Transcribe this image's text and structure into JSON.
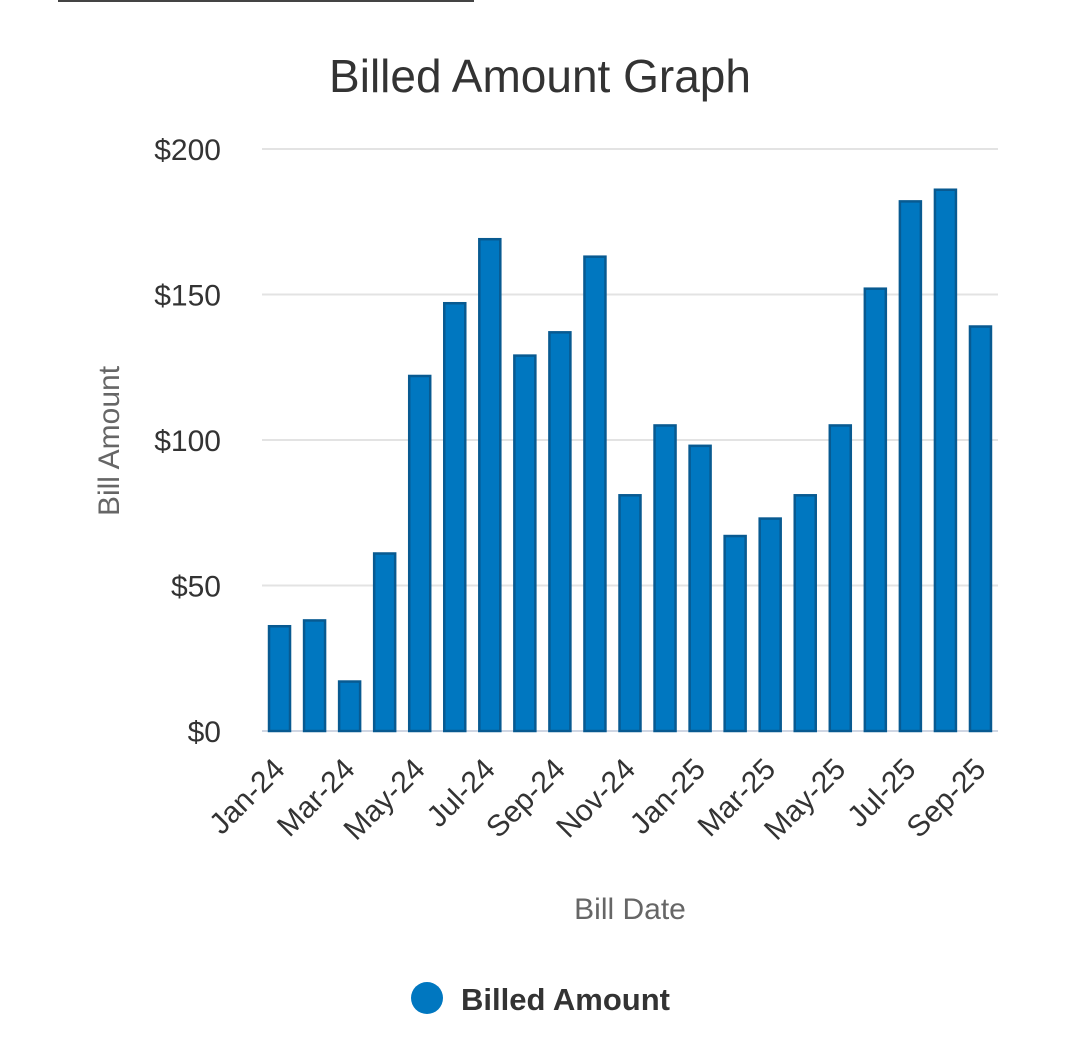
{
  "chart_data": {
    "type": "bar",
    "title": "Billed Amount Graph",
    "xlabel": "Bill Date",
    "ylabel": "Bill Amount",
    "ylim": [
      0,
      200
    ],
    "yticks": [
      0,
      50,
      100,
      150,
      200
    ],
    "ytick_labels": [
      "$0",
      "$50",
      "$100",
      "$150",
      "$200"
    ],
    "categories": [
      "Jan-24",
      "Feb-24",
      "Mar-24",
      "Apr-24",
      "May-24",
      "Jun-24",
      "Jul-24",
      "Aug-24",
      "Sep-24",
      "Oct-24",
      "Nov-24",
      "Dec-24",
      "Jan-25",
      "Feb-25",
      "Mar-25",
      "Apr-25",
      "May-25",
      "Jun-25",
      "Jul-25",
      "Aug-25",
      "Sep-25"
    ],
    "xtick_labels": [
      "Jan-24",
      "Mar-24",
      "May-24",
      "Jul-24",
      "Sep-24",
      "Nov-24",
      "Jan-25",
      "Mar-25",
      "May-25",
      "Jul-25",
      "Sep-25"
    ],
    "series": [
      {
        "name": "Billed Amount",
        "color": "#0077c0",
        "values": [
          36,
          38,
          17,
          61,
          122,
          147,
          169,
          129,
          137,
          163,
          81,
          105,
          98,
          67,
          73,
          81,
          105,
          152,
          182,
          186,
          139
        ]
      }
    ],
    "grid": true,
    "legend": "bottom-center"
  },
  "colors": {
    "bar_fill": "#0077c0",
    "bar_stroke": "#085a91",
    "grid": "#e3e3e3",
    "axis": "#cfd6e3"
  }
}
